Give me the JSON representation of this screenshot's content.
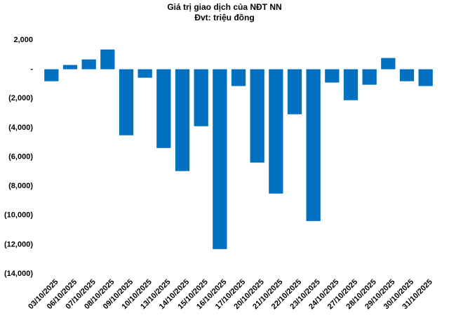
{
  "chart_data": {
    "type": "bar",
    "title": "Giá trị giao dịch của NĐT NN",
    "subtitle": "Đvt: triệu đồng",
    "categories": [
      "03/10/2025",
      "06/10/2025",
      "07/10/2025",
      "08/10/2025",
      "09/10/2025",
      "10/10/2025",
      "13/10/2025",
      "14/10/2025",
      "15/10/2025",
      "16/10/2025",
      "17/10/2025",
      "20/10/2025",
      "21/10/2025",
      "22/10/2025",
      "23/10/2025",
      "24/10/2025",
      "27/10/2025",
      "28/10/2025",
      "29/10/2025",
      "30/10/2025",
      "31/10/2025"
    ],
    "values": [
      -820,
      290,
      670,
      1350,
      -4520,
      -580,
      -5390,
      -6970,
      -3900,
      -12310,
      -1150,
      -6390,
      -8510,
      -3080,
      -10390,
      -910,
      -2120,
      -1060,
      770,
      -820,
      -1150
    ],
    "color": "#0070c0",
    "ylim": [
      -14000,
      2000
    ],
    "yticks": [
      {
        "value": 2000,
        "label": "2,000"
      },
      {
        "value": 0,
        "label": "-"
      },
      {
        "value": -2000,
        "label": "(2,000)"
      },
      {
        "value": -4000,
        "label": "(4,000)"
      },
      {
        "value": -6000,
        "label": "(6,000)"
      },
      {
        "value": -8000,
        "label": "(8,000)"
      },
      {
        "value": -10000,
        "label": "(10,000)"
      },
      {
        "value": -12000,
        "label": "(12,000)"
      },
      {
        "value": -14000,
        "label": "(14,000)"
      }
    ],
    "grid": false
  }
}
